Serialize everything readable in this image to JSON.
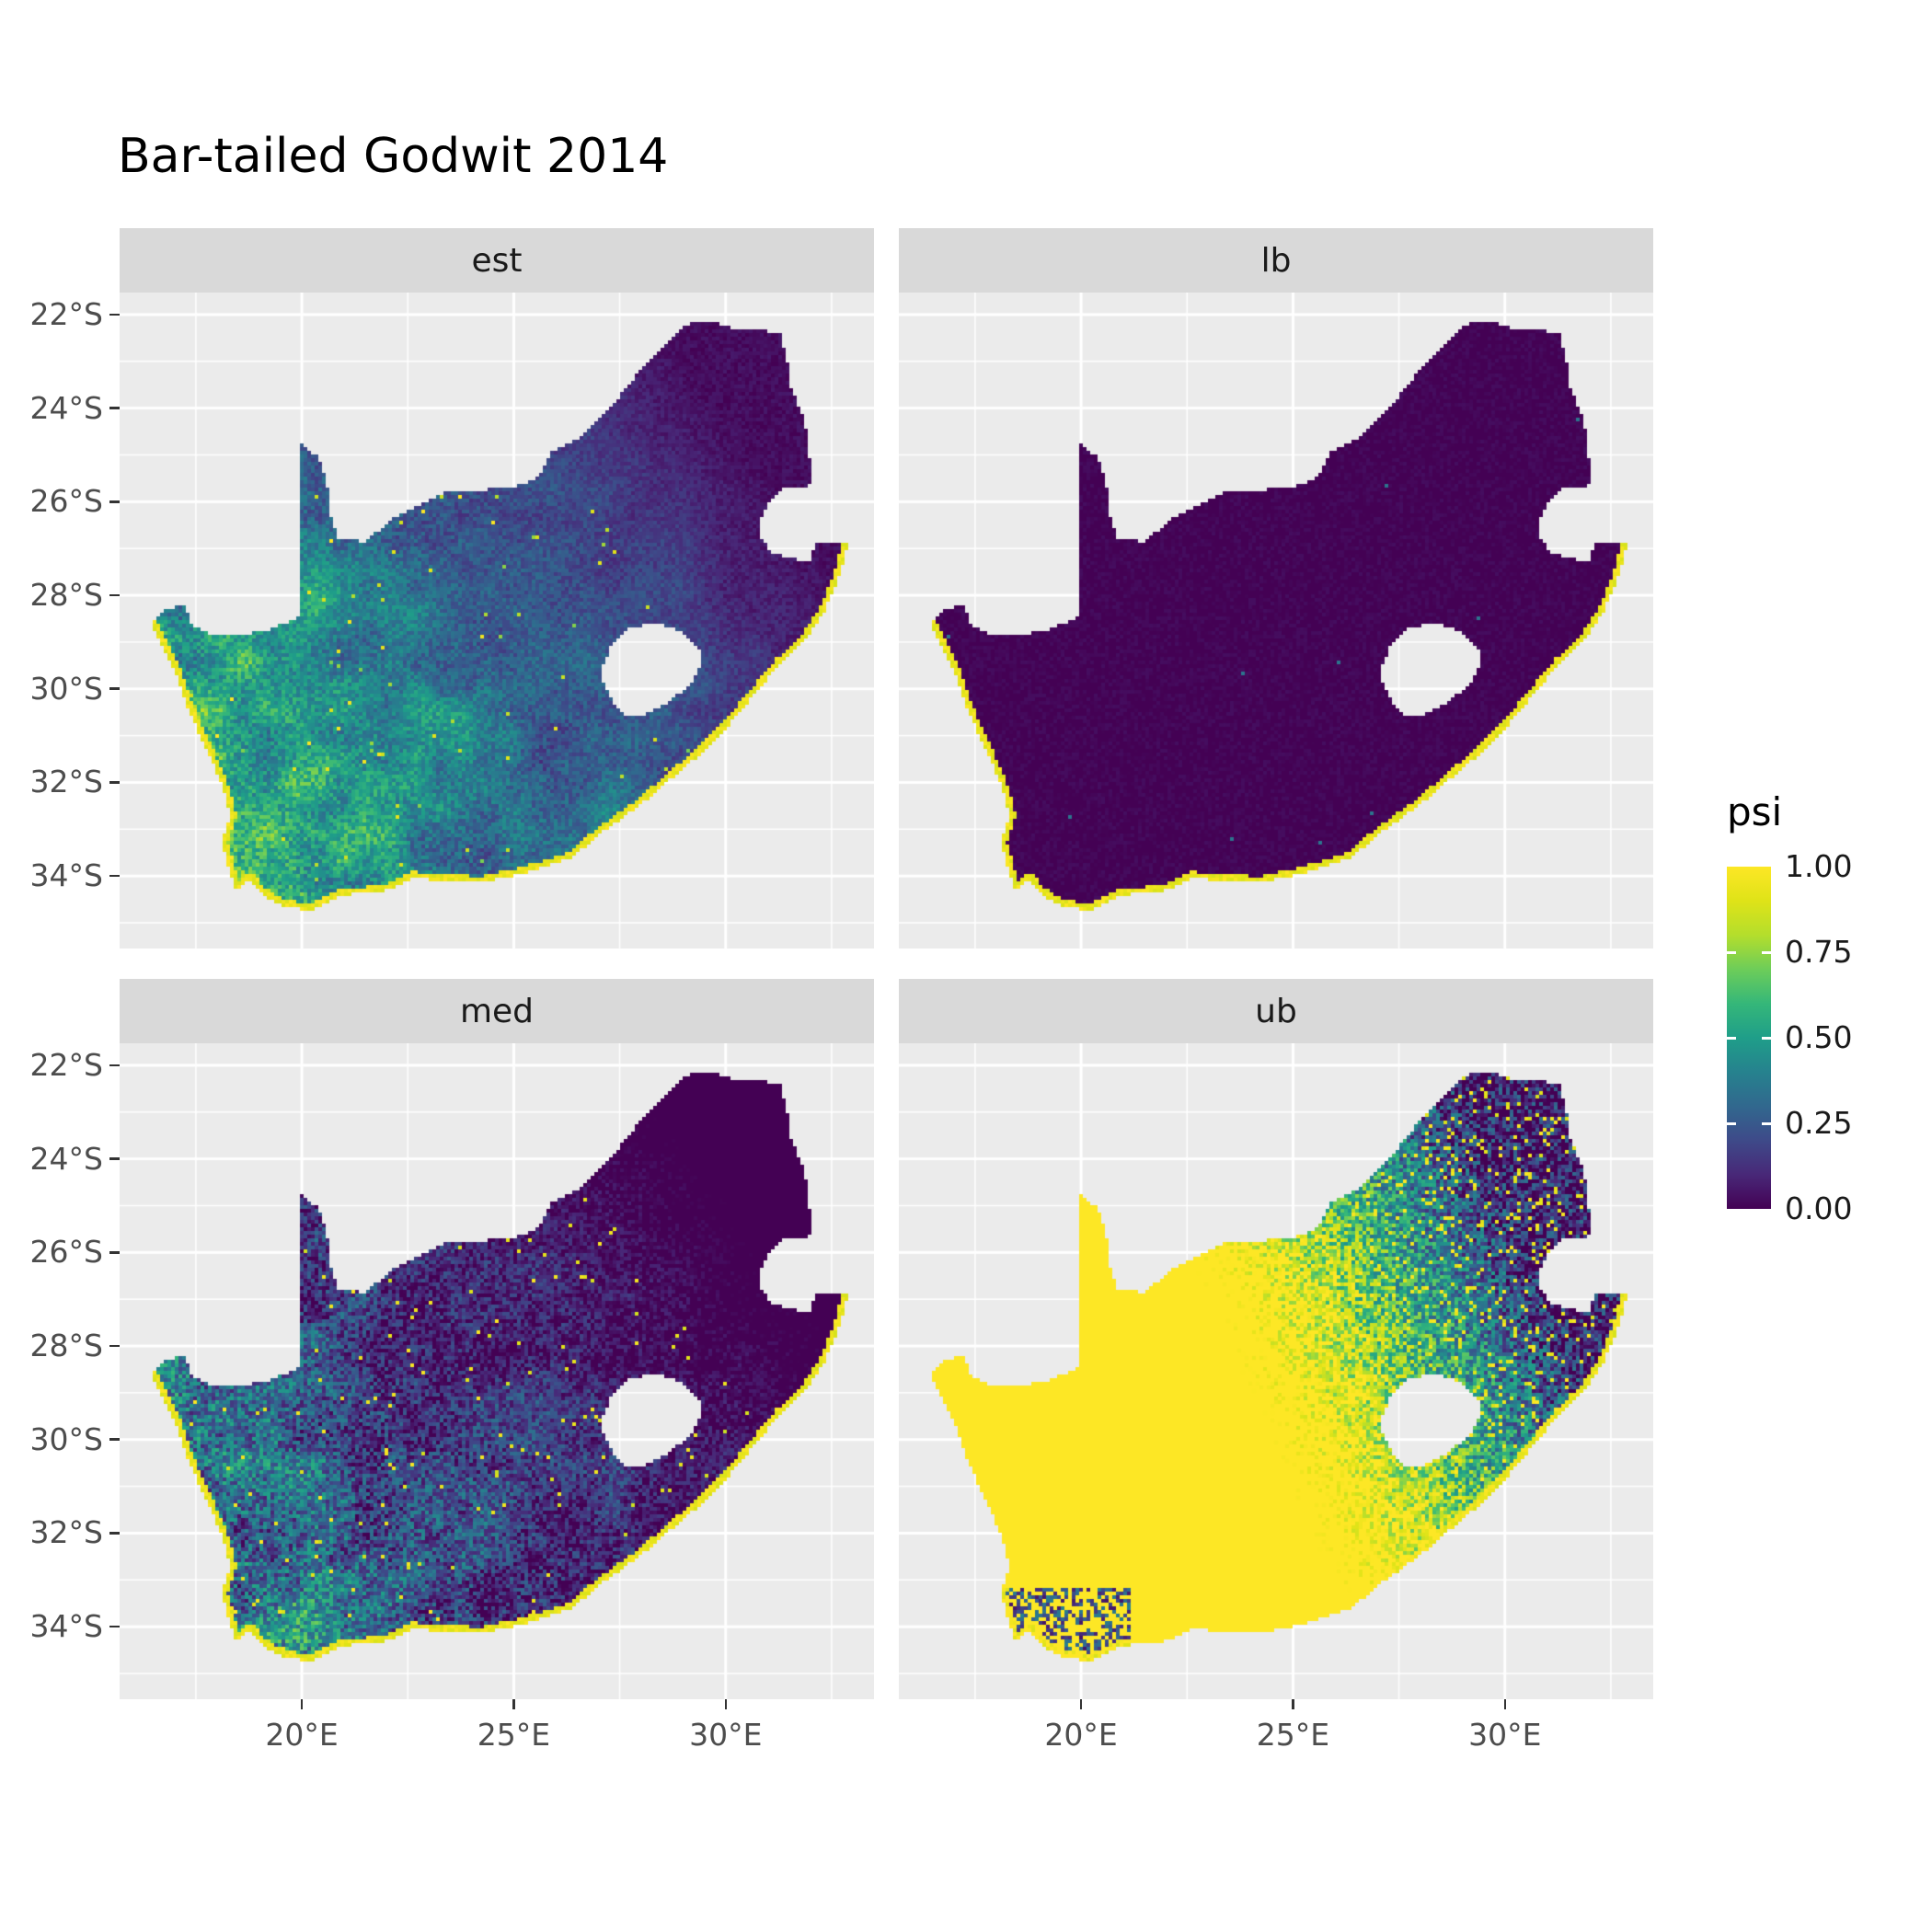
{
  "title": "Bar-tailed Godwit 2014",
  "chart_data": {
    "type": "heatmap",
    "title": "Bar-tailed Godwit 2014",
    "region": "South Africa",
    "variable": "psi (occupancy probability)",
    "facets": [
      {
        "label": "est",
        "pattern": "moderate values, higher toward the south-west, bright yellow fringe along the coastline"
      },
      {
        "label": "lb",
        "pattern": "near-zero values everywhere, thin yellow fringe along the southern and western coastline"
      },
      {
        "label": "med",
        "pattern": "low values with speckled moderate patch in the south-west, yellow coastal fringe"
      },
      {
        "label": "ub",
        "pattern": "high values across the west and south, mixed speckled values in the east and north-east"
      }
    ],
    "x_ticks": [
      {
        "label": "20°E",
        "value": 20
      },
      {
        "label": "25°E",
        "value": 25
      },
      {
        "label": "30°E",
        "value": 30
      }
    ],
    "y_ticks": [
      {
        "label": "22°S",
        "value": 22
      },
      {
        "label": "24°S",
        "value": 24
      },
      {
        "label": "26°S",
        "value": 26
      },
      {
        "label": "28°S",
        "value": 28
      },
      {
        "label": "30°S",
        "value": 30
      },
      {
        "label": "32°S",
        "value": 32
      },
      {
        "label": "34°S",
        "value": 34
      }
    ],
    "x_minor": [
      17.5,
      22.5,
      27.5,
      32.5
    ],
    "y_minor": [
      23,
      25,
      27,
      29,
      31,
      33,
      35
    ],
    "lon_range": [
      15.7,
      33.5
    ],
    "lat_range_south": [
      21.53,
      35.55
    ],
    "legend": {
      "title": "psi",
      "ticks": [
        {
          "label": "1.00",
          "value": 1.0
        },
        {
          "label": "0.75",
          "value": 0.75
        },
        {
          "label": "0.50",
          "value": 0.5
        },
        {
          "label": "0.25",
          "value": 0.25
        },
        {
          "label": "0.00",
          "value": 0.0
        }
      ]
    },
    "colors": {
      "panel_bg": "#EBEBEB",
      "strip_bg": "#D9D9D9",
      "grid": "#FFFFFF",
      "axis_text": "#4D4D4D",
      "tick": "#333333",
      "title_text": "#000000"
    },
    "colormap": {
      "name": "viridis",
      "stops": [
        {
          "t": 0.0,
          "c": "#440154"
        },
        {
          "t": 0.1,
          "c": "#482878"
        },
        {
          "t": 0.2,
          "c": "#3E4A89"
        },
        {
          "t": 0.3,
          "c": "#31688E"
        },
        {
          "t": 0.4,
          "c": "#26828E"
        },
        {
          "t": 0.5,
          "c": "#1F9E89"
        },
        {
          "t": 0.6,
          "c": "#35B779"
        },
        {
          "t": 0.7,
          "c": "#6DCD59"
        },
        {
          "t": 0.8,
          "c": "#B4DE2C"
        },
        {
          "t": 0.9,
          "c": "#DFE318"
        },
        {
          "t": 1.0,
          "c": "#FDE725"
        }
      ]
    },
    "map": {
      "outline": [
        [
          16.45,
          -28.58
        ],
        [
          16.8,
          -28.32
        ],
        [
          17.2,
          -28.2
        ],
        [
          17.45,
          -28.68
        ],
        [
          18.0,
          -28.87
        ],
        [
          18.6,
          -28.85
        ],
        [
          19.3,
          -28.72
        ],
        [
          19.98,
          -28.43
        ],
        [
          19.99,
          -24.77
        ],
        [
          20.38,
          -25.05
        ],
        [
          20.6,
          -25.6
        ],
        [
          20.64,
          -26.15
        ],
        [
          20.86,
          -26.8
        ],
        [
          21.5,
          -26.85
        ],
        [
          22.1,
          -26.4
        ],
        [
          22.72,
          -26.1
        ],
        [
          23.4,
          -25.78
        ],
        [
          24.2,
          -25.75
        ],
        [
          25.0,
          -25.7
        ],
        [
          25.6,
          -25.47
        ],
        [
          25.9,
          -24.95
        ],
        [
          26.5,
          -24.65
        ],
        [
          26.9,
          -24.3
        ],
        [
          27.5,
          -23.75
        ],
        [
          28.05,
          -23.1
        ],
        [
          28.6,
          -22.65
        ],
        [
          29.1,
          -22.2
        ],
        [
          29.65,
          -22.15
        ],
        [
          30.1,
          -22.28
        ],
        [
          30.65,
          -22.32
        ],
        [
          31.3,
          -22.4
        ],
        [
          31.45,
          -23.0
        ],
        [
          31.55,
          -23.6
        ],
        [
          31.8,
          -24.1
        ],
        [
          31.95,
          -24.7
        ],
        [
          32.0,
          -25.35
        ],
        [
          32.05,
          -25.65
        ],
        [
          31.4,
          -25.72
        ],
        [
          31.05,
          -25.95
        ],
        [
          30.82,
          -26.4
        ],
        [
          30.85,
          -26.8
        ],
        [
          31.1,
          -27.1
        ],
        [
          31.6,
          -27.2
        ],
        [
          31.97,
          -27.32
        ],
        [
          32.15,
          -26.86
        ],
        [
          32.9,
          -26.86
        ],
        [
          32.65,
          -27.7
        ],
        [
          32.3,
          -28.4
        ],
        [
          31.9,
          -28.95
        ],
        [
          31.3,
          -29.45
        ],
        [
          30.7,
          -30.1
        ],
        [
          30.1,
          -30.75
        ],
        [
          29.4,
          -31.4
        ],
        [
          28.6,
          -32.0
        ],
        [
          27.9,
          -32.55
        ],
        [
          27.1,
          -33.05
        ],
        [
          26.4,
          -33.6
        ],
        [
          25.7,
          -33.82
        ],
        [
          25.0,
          -34.0
        ],
        [
          24.2,
          -34.15
        ],
        [
          23.4,
          -34.1
        ],
        [
          22.6,
          -34.05
        ],
        [
          21.9,
          -34.35
        ],
        [
          21.0,
          -34.4
        ],
        [
          20.2,
          -34.75
        ],
        [
          19.5,
          -34.63
        ],
        [
          19.0,
          -34.35
        ],
        [
          18.78,
          -34.08
        ],
        [
          18.44,
          -34.32
        ],
        [
          18.3,
          -33.9
        ],
        [
          18.1,
          -33.3
        ],
        [
          18.32,
          -32.7
        ],
        [
          18.1,
          -32.0
        ],
        [
          17.7,
          -31.2
        ],
        [
          17.3,
          -30.4
        ],
        [
          16.95,
          -29.5
        ],
        [
          16.6,
          -28.9
        ]
      ],
      "lesotho": [
        [
          27.05,
          -29.65
        ],
        [
          27.3,
          -29.1
        ],
        [
          27.75,
          -28.7
        ],
        [
          28.3,
          -28.58
        ],
        [
          28.9,
          -28.75
        ],
        [
          29.35,
          -29.1
        ],
        [
          29.45,
          -29.45
        ],
        [
          29.15,
          -29.95
        ],
        [
          28.6,
          -30.3
        ],
        [
          28.1,
          -30.55
        ],
        [
          27.72,
          -30.6
        ],
        [
          27.4,
          -30.35
        ],
        [
          27.18,
          -30.0
        ]
      ],
      "coast": [
        [
          32.9,
          -26.86
        ],
        [
          32.65,
          -27.7
        ],
        [
          32.3,
          -28.4
        ],
        [
          31.9,
          -28.95
        ],
        [
          31.3,
          -29.45
        ],
        [
          30.7,
          -30.1
        ],
        [
          30.1,
          -30.75
        ],
        [
          29.4,
          -31.4
        ],
        [
          28.6,
          -32.0
        ],
        [
          27.9,
          -32.55
        ],
        [
          27.1,
          -33.05
        ],
        [
          26.4,
          -33.6
        ],
        [
          25.7,
          -33.82
        ],
        [
          25.0,
          -34.0
        ],
        [
          24.2,
          -34.15
        ],
        [
          23.4,
          -34.1
        ],
        [
          22.6,
          -34.05
        ],
        [
          21.9,
          -34.35
        ],
        [
          21.0,
          -34.4
        ],
        [
          20.2,
          -34.75
        ],
        [
          19.5,
          -34.63
        ],
        [
          19.0,
          -34.35
        ],
        [
          18.78,
          -34.08
        ],
        [
          18.44,
          -34.32
        ],
        [
          18.3,
          -33.9
        ],
        [
          18.1,
          -33.3
        ],
        [
          18.32,
          -32.7
        ],
        [
          18.1,
          -32.0
        ],
        [
          17.7,
          -31.2
        ],
        [
          17.3,
          -30.4
        ],
        [
          16.95,
          -29.5
        ],
        [
          16.6,
          -28.9
        ],
        [
          16.45,
          -28.58
        ]
      ]
    }
  }
}
